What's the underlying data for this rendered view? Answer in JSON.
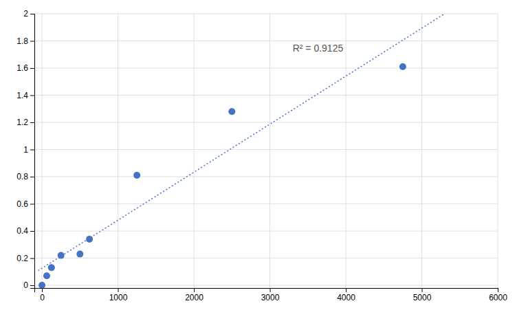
{
  "chart_data": {
    "type": "scatter",
    "series": [
      {
        "type": "scatter",
        "marker": "circle",
        "color": "#4472C4",
        "x": [
          0,
          62.5,
          125,
          250,
          500,
          625,
          1250,
          2500,
          4750
        ],
        "values": [
          0.0,
          0.07,
          0.13,
          0.22,
          0.23,
          0.34,
          0.81,
          1.28,
          1.61
        ]
      },
      {
        "type": "line",
        "line_style": "dotted",
        "color": "#4472C4",
        "x": [
          -50,
          5299.56
        ],
        "values": [
          0.108,
          2.0
        ]
      }
    ],
    "annotations": [
      {
        "text": "R² = 0.9125",
        "x": 3300,
        "y": 1.72
      }
    ],
    "xlim": [
      -100,
      6000
    ],
    "ylim": [
      -0.02,
      2.0
    ],
    "xticks": [
      0,
      1000,
      2000,
      3000,
      4000,
      5000,
      6000
    ],
    "yticks": [
      0,
      0.2,
      0.4,
      0.6,
      0.8,
      1,
      1.2,
      1.4,
      1.6,
      1.8,
      2
    ],
    "grid": true
  }
}
